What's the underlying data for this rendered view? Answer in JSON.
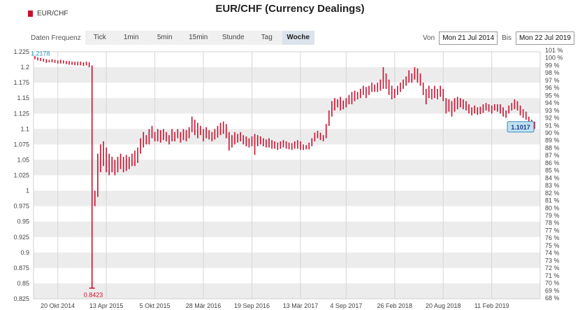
{
  "title": "EUR/CHF (Currency Dealings)",
  "legend": {
    "label": "EUR/CHF",
    "color": "#c8102e"
  },
  "toolbar": {
    "label": "Daten Frequenz",
    "buttons": [
      "Tick",
      "1min",
      "5min",
      "15min",
      "Stunde",
      "Tag",
      "Woche"
    ],
    "active": "Woche"
  },
  "range": {
    "from_label": "Von",
    "from_value": "Mon 21 Jul 2014",
    "to_label": "Bis",
    "to_value": "Mon 22 Jul 2019"
  },
  "chart_data": {
    "type": "ohlc",
    "color": "#c8102e",
    "grid": true,
    "banded_background": true,
    "ylim": [
      0.825,
      1.225
    ],
    "yticks": [
      "1.225",
      "1.2",
      "1.175",
      "1.15",
      "1.125",
      "1.1",
      "1.075",
      "1.05",
      "1.025",
      "1",
      "0.975",
      "0.95",
      "0.925",
      "0.9",
      "0.875",
      "0.85",
      "0.825"
    ],
    "xticks": [
      "20 Okt 2014",
      "13 Apr 2015",
      "5 Okt 2015",
      "28 Mär 2016",
      "19 Sep 2016",
      "13 Mär 2017",
      "4 Sep 2017",
      "26 Feb 2018",
      "20 Aug 2018",
      "11 Feb 2019"
    ],
    "right_axis": {
      "labels": [
        "101 %",
        "100 %",
        "99 %",
        "98 %",
        "97 %",
        "96 %",
        "95 %",
        "94 %",
        "93 %",
        "92 %",
        "91 %",
        "90 %",
        "89 %",
        "88 %",
        "87 %",
        "86 %",
        "85 %",
        "84 %",
        "83 %",
        "82 %",
        "81 %",
        "80 %",
        "79 %",
        "78 %",
        "77 %",
        "76 %",
        "75 %",
        "74 %",
        "73 %",
        "72 %",
        "71 %",
        "70 %",
        "69 %",
        "68 %"
      ]
    },
    "annotations": {
      "start_value": "1.2178",
      "low_value": "0.8423",
      "last_value": "1.1017"
    },
    "weekly_high_low": [
      [
        1.218,
        1.213
      ],
      [
        1.216,
        1.211
      ],
      [
        1.215,
        1.21
      ],
      [
        1.214,
        1.209
      ],
      [
        1.213,
        1.207
      ],
      [
        1.212,
        1.208
      ],
      [
        1.213,
        1.208
      ],
      [
        1.212,
        1.207
      ],
      [
        1.211,
        1.206
      ],
      [
        1.212,
        1.206
      ],
      [
        1.211,
        1.206
      ],
      [
        1.21,
        1.205
      ],
      [
        1.21,
        1.204
      ],
      [
        1.209,
        1.204
      ],
      [
        1.209,
        1.203
      ],
      [
        1.209,
        1.203
      ],
      [
        1.209,
        1.203
      ],
      [
        1.208,
        1.202
      ],
      [
        1.209,
        1.203
      ],
      [
        1.208,
        1.2
      ],
      [
        1.203,
        0.842
      ],
      [
        1.0,
        0.975
      ],
      [
        1.06,
        0.99
      ],
      [
        1.075,
        1.03
      ],
      [
        1.08,
        1.04
      ],
      [
        1.07,
        1.03
      ],
      [
        1.06,
        1.025
      ],
      [
        1.055,
        1.03
      ],
      [
        1.05,
        1.025
      ],
      [
        1.055,
        1.03
      ],
      [
        1.06,
        1.035
      ],
      [
        1.055,
        1.03
      ],
      [
        1.058,
        1.032
      ],
      [
        1.055,
        1.035
      ],
      [
        1.06,
        1.04
      ],
      [
        1.065,
        1.04
      ],
      [
        1.07,
        1.045
      ],
      [
        1.085,
        1.06
      ],
      [
        1.095,
        1.07
      ],
      [
        1.09,
        1.075
      ],
      [
        1.1,
        1.075
      ],
      [
        1.105,
        1.085
      ],
      [
        1.095,
        1.08
      ],
      [
        1.1,
        1.08
      ],
      [
        1.098,
        1.078
      ],
      [
        1.1,
        1.082
      ],
      [
        1.095,
        1.08
      ],
      [
        1.09,
        1.075
      ],
      [
        1.1,
        1.08
      ],
      [
        1.095,
        1.08
      ],
      [
        1.1,
        1.085
      ],
      [
        1.095,
        1.078
      ],
      [
        1.1,
        1.082
      ],
      [
        1.098,
        1.08
      ],
      [
        1.103,
        1.085
      ],
      [
        1.12,
        1.095
      ],
      [
        1.115,
        1.09
      ],
      [
        1.11,
        1.085
      ],
      [
        1.105,
        1.09
      ],
      [
        1.1,
        1.08
      ],
      [
        1.103,
        1.085
      ],
      [
        1.098,
        1.083
      ],
      [
        1.095,
        1.08
      ],
      [
        1.1,
        1.083
      ],
      [
        1.105,
        1.086
      ],
      [
        1.11,
        1.09
      ],
      [
        1.112,
        1.092
      ],
      [
        1.108,
        1.085
      ],
      [
        1.095,
        1.065
      ],
      [
        1.09,
        1.07
      ],
      [
        1.095,
        1.075
      ],
      [
        1.092,
        1.078
      ],
      [
        1.095,
        1.08
      ],
      [
        1.09,
        1.075
      ],
      [
        1.088,
        1.072
      ],
      [
        1.085,
        1.07
      ],
      [
        1.088,
        1.072
      ],
      [
        1.092,
        1.058
      ],
      [
        1.09,
        1.072
      ],
      [
        1.088,
        1.075
      ],
      [
        1.085,
        1.072
      ],
      [
        1.083,
        1.07
      ],
      [
        1.085,
        1.07
      ],
      [
        1.082,
        1.068
      ],
      [
        1.08,
        1.068
      ],
      [
        1.078,
        1.066
      ],
      [
        1.08,
        1.068
      ],
      [
        1.082,
        1.07
      ],
      [
        1.08,
        1.068
      ],
      [
        1.078,
        1.067
      ],
      [
        1.077,
        1.066
      ],
      [
        1.08,
        1.068
      ],
      [
        1.082,
        1.068
      ],
      [
        1.08,
        1.066
      ],
      [
        1.075,
        1.066
      ],
      [
        1.074,
        1.067
      ],
      [
        1.078,
        1.067
      ],
      [
        1.085,
        1.072
      ],
      [
        1.094,
        1.08
      ],
      [
        1.097,
        1.085
      ],
      [
        1.094,
        1.082
      ],
      [
        1.09,
        1.08
      ],
      [
        1.108,
        1.085
      ],
      [
        1.13,
        1.105
      ],
      [
        1.145,
        1.12
      ],
      [
        1.15,
        1.13
      ],
      [
        1.148,
        1.135
      ],
      [
        1.152,
        1.13
      ],
      [
        1.146,
        1.132
      ],
      [
        1.15,
        1.135
      ],
      [
        1.155,
        1.14
      ],
      [
        1.16,
        1.14
      ],
      [
        1.162,
        1.145
      ],
      [
        1.16,
        1.148
      ],
      [
        1.165,
        1.15
      ],
      [
        1.17,
        1.155
      ],
      [
        1.168,
        1.15
      ],
      [
        1.17,
        1.155
      ],
      [
        1.175,
        1.16
      ],
      [
        1.172,
        1.16
      ],
      [
        1.175,
        1.16
      ],
      [
        1.18,
        1.162
      ],
      [
        1.2,
        1.165
      ],
      [
        1.19,
        1.165
      ],
      [
        1.18,
        1.155
      ],
      [
        1.17,
        1.148
      ],
      [
        1.165,
        1.15
      ],
      [
        1.17,
        1.155
      ],
      [
        1.175,
        1.16
      ],
      [
        1.18,
        1.165
      ],
      [
        1.185,
        1.17
      ],
      [
        1.195,
        1.175
      ],
      [
        1.19,
        1.175
      ],
      [
        1.2,
        1.18
      ],
      [
        1.198,
        1.175
      ],
      [
        1.19,
        1.17
      ],
      [
        1.175,
        1.155
      ],
      [
        1.165,
        1.14
      ],
      [
        1.17,
        1.15
      ],
      [
        1.165,
        1.148
      ],
      [
        1.17,
        1.15
      ],
      [
        1.165,
        1.148
      ],
      [
        1.17,
        1.152
      ],
      [
        1.165,
        1.145
      ],
      [
        1.15,
        1.125
      ],
      [
        1.148,
        1.128
      ],
      [
        1.145,
        1.12
      ],
      [
        1.15,
        1.128
      ],
      [
        1.152,
        1.132
      ],
      [
        1.15,
        1.135
      ],
      [
        1.148,
        1.132
      ],
      [
        1.145,
        1.13
      ],
      [
        1.14,
        1.125
      ],
      [
        1.135,
        1.122
      ],
      [
        1.138,
        1.125
      ],
      [
        1.135,
        1.123
      ],
      [
        1.136,
        1.124
      ],
      [
        1.14,
        1.126
      ],
      [
        1.142,
        1.13
      ],
      [
        1.14,
        1.128
      ],
      [
        1.138,
        1.125
      ],
      [
        1.14,
        1.13
      ],
      [
        1.14,
        1.128
      ],
      [
        1.14,
        1.125
      ],
      [
        1.135,
        1.12
      ],
      [
        1.13,
        1.118
      ],
      [
        1.138,
        1.125
      ],
      [
        1.142,
        1.13
      ],
      [
        1.148,
        1.132
      ],
      [
        1.145,
        1.13
      ],
      [
        1.138,
        1.122
      ],
      [
        1.132,
        1.118
      ],
      [
        1.128,
        1.115
      ],
      [
        1.12,
        1.108
      ],
      [
        1.115,
        1.1
      ],
      [
        1.112,
        1.1
      ]
    ]
  }
}
